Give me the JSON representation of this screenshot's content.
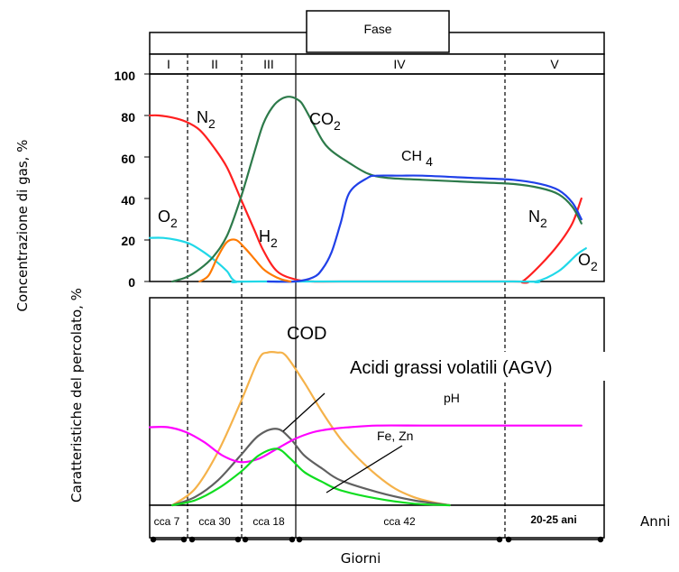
{
  "chart_data": [
    {
      "type": "line",
      "header_label": "Fase",
      "phases": [
        "I",
        "II",
        "III",
        "IV",
        "V"
      ],
      "ylabel": "Concentrazione di gas, %",
      "ylim": [
        0,
        100
      ],
      "yticks": [
        "0",
        "20",
        "40",
        "60",
        "80",
        "100"
      ],
      "series": [
        {
          "name": "N2",
          "color": "#ff2020",
          "x": [
            0,
            2,
            5,
            8,
            11,
            14,
            17,
            20,
            23,
            25,
            28,
            32,
            36,
            42,
            80,
            82,
            86,
            90,
            93,
            95
          ],
          "y": [
            80,
            80,
            79,
            77,
            73,
            65,
            55,
            40,
            25,
            15,
            5,
            1,
            0,
            0,
            0,
            0,
            8,
            18,
            28,
            40
          ]
        },
        {
          "name": "O2",
          "color": "#20d8e8",
          "x": [
            0,
            3,
            6,
            9,
            12,
            15,
            17,
            19,
            24,
            80,
            85,
            90,
            94,
            96
          ],
          "y": [
            21,
            21,
            20,
            18,
            14,
            9,
            5,
            0,
            0,
            0,
            0,
            5,
            13,
            16
          ]
        },
        {
          "name": "CO2",
          "color": "#2d7a4a",
          "x": [
            5,
            8,
            11,
            14,
            17,
            20,
            23,
            25,
            27,
            29,
            31,
            33,
            34,
            36,
            38,
            40,
            44,
            48,
            52,
            60,
            70,
            80,
            86,
            90,
            93,
            95
          ],
          "y": [
            0,
            2,
            6,
            12,
            22,
            40,
            62,
            76,
            84,
            88,
            89,
            87,
            84,
            76,
            68,
            63,
            57,
            52,
            50,
            49,
            48,
            47,
            45,
            42,
            36,
            28
          ]
        },
        {
          "name": "CH4",
          "color": "#2040e8",
          "x": [
            26,
            32,
            36,
            38,
            40,
            42,
            44,
            48,
            50,
            55,
            60,
            70,
            80,
            86,
            90,
            93,
            95
          ],
          "y": [
            0,
            0,
            2,
            6,
            14,
            28,
            43,
            50,
            51,
            51,
            51,
            50,
            49,
            47,
            44,
            38,
            30
          ]
        },
        {
          "name": "H2",
          "color": "#ff7a00",
          "x": [
            11,
            13,
            15,
            17,
            19,
            21,
            23,
            25,
            27,
            29,
            31
          ],
          "y": [
            0,
            3,
            12,
            19,
            20,
            16,
            11,
            6,
            3,
            1,
            0
          ]
        }
      ],
      "labels": [
        "N",
        "2",
        "O",
        "2",
        "CO",
        "2",
        "CH",
        "4",
        "H",
        "2",
        "N",
        "2",
        "O",
        "2"
      ]
    },
    {
      "type": "line",
      "ylabel": "Caratteristiche del percolato, %",
      "xlabel": "Giorni",
      "x_end_label": "Anni",
      "segments": [
        "cca 7",
        "cca 30",
        "cca 18",
        "cca 42",
        "20-25 ani"
      ],
      "annotations": [
        "COD",
        "Acidi grassi volatili (AGV)",
        "pH",
        "Fe, Zn"
      ],
      "series": [
        {
          "name": "COD",
          "color": "#f5b24a",
          "x": [
            5,
            10,
            15,
            20,
            24,
            26,
            28,
            30,
            34,
            38,
            42,
            46,
            50,
            54,
            58,
            62,
            66
          ],
          "y": [
            0,
            10,
            32,
            62,
            88,
            92,
            92,
            90,
            74,
            56,
            40,
            28,
            18,
            10,
            5,
            2,
            0
          ]
        },
        {
          "name": "Acidi grassi volatili (AGV)",
          "color": "#606060",
          "x": [
            5,
            10,
            15,
            20,
            24,
            28,
            31,
            34,
            38,
            42,
            50,
            58,
            66
          ],
          "y": [
            0,
            5,
            15,
            30,
            42,
            46,
            40,
            30,
            22,
            15,
            8,
            3,
            0
          ]
        },
        {
          "name": "pH",
          "color": "#ff00ff",
          "x": [
            0,
            4,
            8,
            12,
            16,
            20,
            24,
            28,
            32,
            36,
            40,
            44,
            50,
            60,
            70,
            80,
            90,
            95
          ],
          "y": [
            47,
            47,
            44,
            38,
            30,
            26,
            28,
            34,
            40,
            44,
            46,
            47,
            48,
            48,
            48,
            48,
            48,
            48
          ]
        },
        {
          "name": "Fe, Zn",
          "color": "#10dd20",
          "x": [
            5,
            10,
            15,
            20,
            24,
            28,
            31,
            34,
            38,
            42,
            50,
            58,
            66
          ],
          "y": [
            0,
            3,
            10,
            20,
            30,
            34,
            28,
            20,
            14,
            9,
            4,
            1,
            0
          ]
        }
      ]
    }
  ]
}
